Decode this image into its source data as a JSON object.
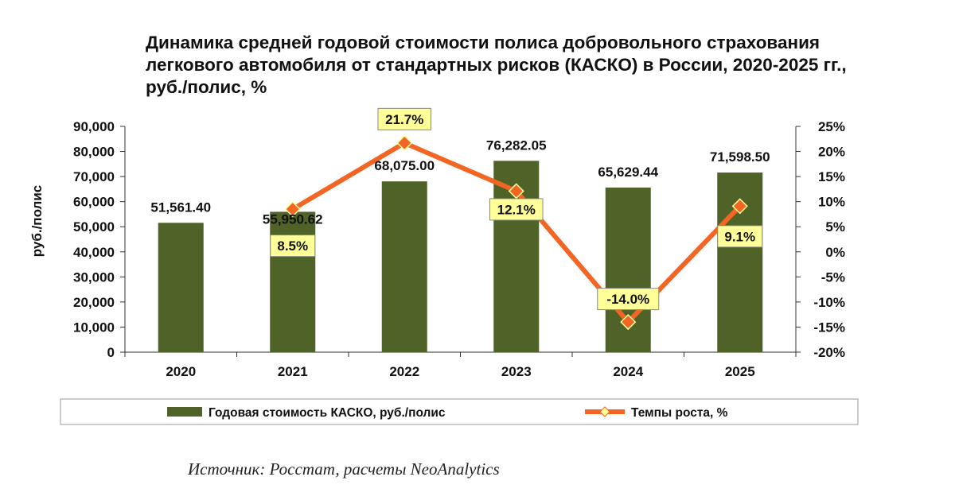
{
  "chart_data": {
    "type": "bar+line",
    "title": "Динамика средней годовой стоимости полиса добровольного страхования легкового автомобиля от стандартных рисков (КАСКО) в России, 2020-2025 гг., руб./полис, %",
    "categories": [
      "2020",
      "2021",
      "2022",
      "2023",
      "2024",
      "2025"
    ],
    "series": [
      {
        "name": "Годовая стоимость КАСКО, руб./полис",
        "kind": "bar",
        "axis": "left",
        "values": [
          51561.4,
          55950.62,
          68075.0,
          76282.05,
          65629.44,
          71598.5
        ],
        "labels": [
          "51,561.40",
          "55,950.62",
          "68,075.00",
          "76,282.05",
          "65,629.44",
          "71,598.50"
        ],
        "color": "#4f6228"
      },
      {
        "name": "Темпы роста, %",
        "kind": "line",
        "axis": "right",
        "values": [
          null,
          8.5,
          21.7,
          12.1,
          -14.0,
          9.1
        ],
        "labels": [
          "",
          "8.5%",
          "21.7%",
          "12.1%",
          "-14.0%",
          "9.1%"
        ],
        "color": "#f26522",
        "marker_color": "#f26522",
        "label_bg": "#ffff99"
      }
    ],
    "ylabel": "руб./полис",
    "ylim": [
      0,
      90000
    ],
    "yticks": [
      "0",
      "10,000",
      "20,000",
      "30,000",
      "40,000",
      "50,000",
      "60,000",
      "70,000",
      "80,000",
      "90,000"
    ],
    "y2lim": [
      -20,
      25
    ],
    "y2ticks": [
      "-20%",
      "-15%",
      "-10%",
      "-5%",
      "0%",
      "5%",
      "10%",
      "15%",
      "20%",
      "25%"
    ],
    "legend_position": "bottom"
  },
  "source": "Источник: Росстат, расчеты NeoAnalytics"
}
